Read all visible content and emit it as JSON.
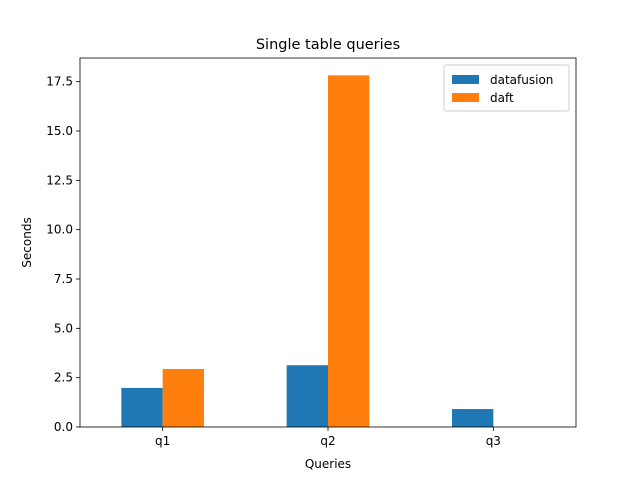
{
  "chart_data": {
    "type": "bar",
    "title": "Single table queries",
    "xlabel": "Queries",
    "ylabel": "Seconds",
    "categories": [
      "q1",
      "q2",
      "q3"
    ],
    "series": [
      {
        "name": "datafusion",
        "color": "#1f77b4",
        "values": [
          1.98,
          3.13,
          0.91
        ]
      },
      {
        "name": "daft",
        "color": "#ff7f0e",
        "values": [
          2.94,
          17.82,
          0
        ]
      }
    ],
    "ylim": [
      0,
      18.7
    ],
    "yticks": [
      "0.0",
      "2.5",
      "5.0",
      "7.5",
      "10.0",
      "12.5",
      "15.0",
      "17.5"
    ],
    "grid": false,
    "legend": "top-right"
  }
}
